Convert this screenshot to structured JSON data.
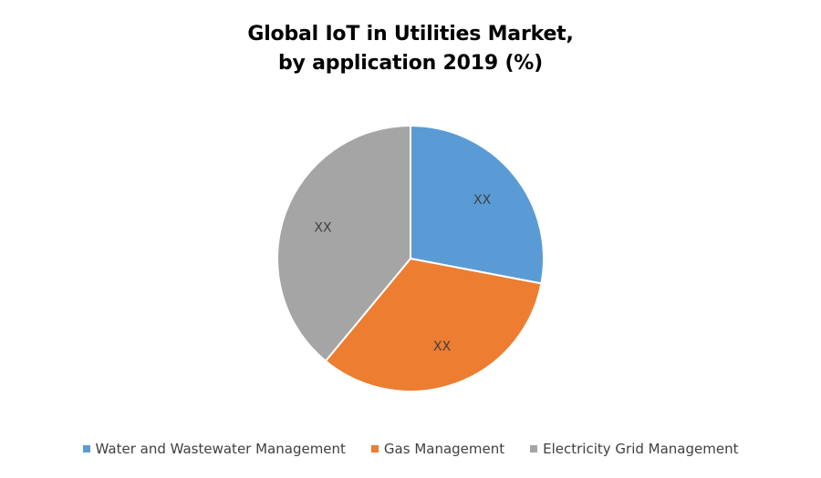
{
  "chart_data": {
    "type": "pie",
    "title_lines": [
      "Global IoT in Utilities Market,",
      "by application 2019 (%)"
    ],
    "slices": [
      {
        "name": "Water and Wastewater Management",
        "value": 28,
        "label": "XX",
        "color": "#5B9BD5"
      },
      {
        "name": "Gas Management",
        "value": 33,
        "label": "XX",
        "color": "#ED7D31"
      },
      {
        "name": "Electricity Grid Management",
        "value": 39,
        "label": "XX",
        "color": "#A5A5A5"
      }
    ],
    "legend_position": "bottom"
  }
}
